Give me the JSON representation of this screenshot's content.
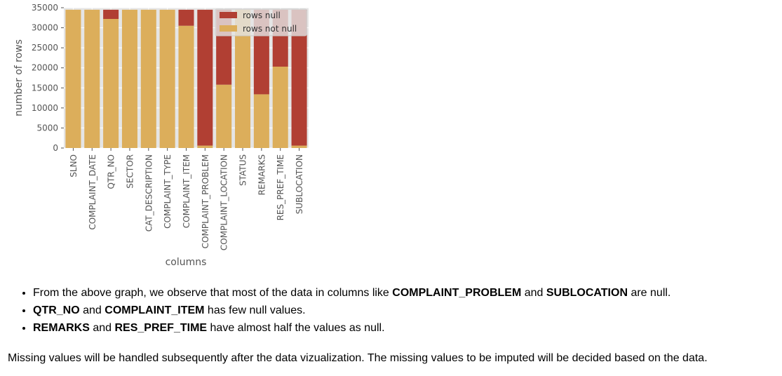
{
  "chart_data": {
    "type": "bar",
    "stacked": true,
    "xlabel": "columns",
    "ylabel": "number of rows",
    "ylim": [
      0,
      35000
    ],
    "yticks": [
      0,
      5000,
      10000,
      15000,
      20000,
      25000,
      30000,
      35000
    ],
    "grid": true,
    "legend_position": "top-right",
    "categories": [
      "SLNO",
      "COMPLAINT_DATE",
      "QTR_NO",
      "SECTOR",
      "CAT_DESCRIPTION",
      "COMPLAINT_TYPE",
      "COMPLAINT_ITEM",
      "COMPLAINT_PROBLEM",
      "COMPLAINT_LOCATION",
      "STATUS",
      "REMARKS",
      "RES_PREF_TIME",
      "SUBLOCATION"
    ],
    "series": [
      {
        "name": "rows not null",
        "color": "#dcae5b",
        "values": [
          34500,
          34500,
          32200,
          34500,
          34500,
          34500,
          30500,
          600,
          15800,
          34500,
          13400,
          20300,
          600
        ]
      },
      {
        "name": "rows null",
        "color": "#b13f33",
        "values": [
          0,
          0,
          2300,
          0,
          0,
          0,
          4000,
          33900,
          18700,
          0,
          21100,
          14200,
          33900
        ]
      }
    ]
  },
  "notes": [
    {
      "parts": [
        {
          "text": "From the above graph, we observe that most of the data in columns like ",
          "bold": false
        },
        {
          "text": "COMPLAINT_PROBLEM",
          "bold": true
        },
        {
          "text": " and ",
          "bold": false
        },
        {
          "text": "SUBLOCATION",
          "bold": true
        },
        {
          "text": " are null.",
          "bold": false
        }
      ]
    },
    {
      "parts": [
        {
          "text": "QTR_NO",
          "bold": true
        },
        {
          "text": " and ",
          "bold": false
        },
        {
          "text": "COMPLAINT_ITEM",
          "bold": true
        },
        {
          "text": " has few null values.",
          "bold": false
        }
      ]
    },
    {
      "parts": [
        {
          "text": "REMARKS",
          "bold": true
        },
        {
          "text": " and ",
          "bold": false
        },
        {
          "text": "RES_PREF_TIME",
          "bold": true
        },
        {
          "text": " have almost half the values as null.",
          "bold": false
        }
      ]
    }
  ],
  "summary": "Missing values will be handled subsequently after the data vizualization. The missing values to be imputed will be decided based on the data."
}
